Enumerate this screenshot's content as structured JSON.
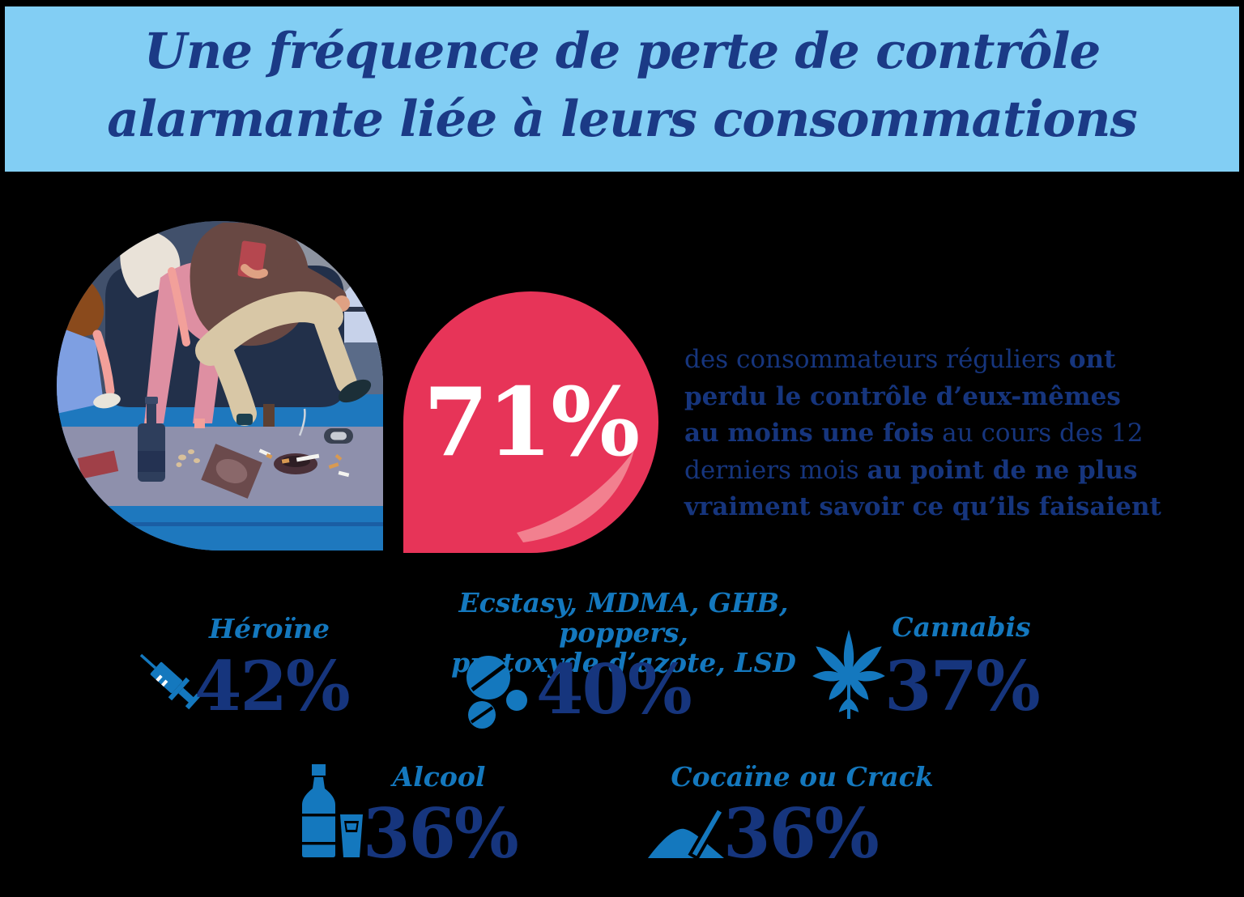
{
  "banner": {
    "title_line1": "Une fréquence de perte de contrôle",
    "title_line2": "alarmante liée à leurs consommations"
  },
  "hero": {
    "stat_value": "71%",
    "description_lines": [
      [
        {
          "t": "des consommateurs réguliers ",
          "b": 0
        },
        {
          "t": "ont",
          "b": 1
        }
      ],
      [
        {
          "t": "perdu le contrôle d’eux-mêmes",
          "b": 1
        }
      ],
      [
        {
          "t": "au moins une fois",
          "b": 1
        },
        {
          "t": " au cours des 12",
          "b": 0
        }
      ],
      [
        {
          "t": "derniers mois ",
          "b": 0
        },
        {
          "t": "au point de ne plus",
          "b": 1
        }
      ],
      [
        {
          "t": "vraiment savoir ce qu’ils faisaient",
          "b": 1
        }
      ]
    ]
  },
  "stats": [
    {
      "id": "heroine",
      "label": "Héroïne",
      "value": "42%",
      "icon": "syringe-icon"
    },
    {
      "id": "ecstasy",
      "label_line1": "Ecstasy, MDMA, GHB, poppers,",
      "label_line2": "protoxyde d’azote, LSD",
      "value": "40%",
      "icon": "pills-icon"
    },
    {
      "id": "cannabis",
      "label": "Cannabis",
      "value": "37%",
      "icon": "cannabis-leaf-icon"
    },
    {
      "id": "alcohol",
      "label": "Alcool",
      "value": "36%",
      "icon": "bottle-and-glass-icon"
    },
    {
      "id": "cocaine",
      "label": "Cocaïne ou Crack",
      "value": "36%",
      "icon": "powder-and-straw-icon"
    }
  ],
  "colors": {
    "banner_bg": "#82CEF4",
    "title_navy": "#1B3A86",
    "body_navy": "#16357D",
    "label_blue": "#1478BE",
    "bubble_pink": "#E73458",
    "bubble_highlight": "#F2808F",
    "background": "#000000",
    "stat_text_white": "#FFFFFF"
  },
  "chart_data": {
    "type": "table",
    "title": "Une fréquence de perte de contrôle alarmante liée à leurs consommations",
    "headline_stat": {
      "value": 71,
      "unit": "%",
      "label": "des consommateurs réguliers ont perdu le contrôle d’eux-mêmes au moins une fois au cours des 12 derniers mois au point de ne plus vraiment savoir ce qu’ils faisaient"
    },
    "categories": [
      "Héroïne",
      "Ecstasy, MDMA, GHB, poppers, protoxyde d’azote, LSD",
      "Cannabis",
      "Alcool",
      "Cocaïne ou Crack"
    ],
    "values": [
      42,
      40,
      37,
      36,
      36
    ],
    "unit": "%"
  }
}
